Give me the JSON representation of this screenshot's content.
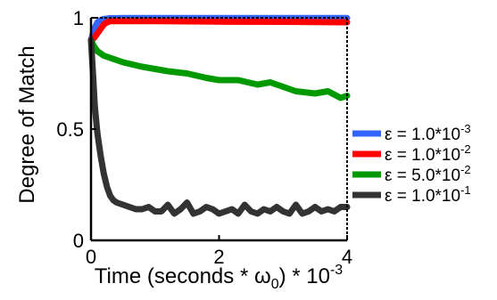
{
  "chart_data": {
    "type": "line",
    "title": "",
    "xlabel": {
      "main": "Time (seconds * ω",
      "sub": "0",
      "after": ") * 10",
      "sup": "-3"
    },
    "ylabel": "Degree of Match",
    "xlim": [
      0,
      4
    ],
    "ylim": [
      0,
      1
    ],
    "x_ticks": [
      0,
      2,
      4
    ],
    "x_tick_labels": [
      "0",
      "2",
      "4"
    ],
    "y_ticks": [
      0,
      0.5,
      1
    ],
    "y_tick_labels": [
      "0",
      "0.5",
      "1"
    ],
    "grid": false,
    "legend_position": "right",
    "series": [
      {
        "name": {
          "main": "ε = 1.0*10",
          "sup": "-3"
        },
        "color": "#3366ff",
        "x": [
          0,
          0.05,
          0.1,
          0.15,
          0.2,
          0.3,
          0.5,
          1,
          2,
          3,
          4
        ],
        "y": [
          0.9,
          0.95,
          0.98,
          0.99,
          0.995,
          0.998,
          0.999,
          0.999,
          0.999,
          0.999,
          0.999
        ]
      },
      {
        "name": {
          "main": "ε = 1.0*10",
          "sup": "-2"
        },
        "color": "#ff0000",
        "x": [
          0,
          0.05,
          0.1,
          0.15,
          0.2,
          0.25,
          0.3,
          0.5,
          1,
          2,
          3,
          4
        ],
        "y": [
          0.9,
          0.91,
          0.93,
          0.95,
          0.97,
          0.98,
          0.985,
          0.985,
          0.985,
          0.983,
          0.982,
          0.98
        ]
      },
      {
        "name": {
          "main": "ε = 5.0*10",
          "sup": "-2"
        },
        "color": "#009900",
        "x": [
          0,
          0.05,
          0.1,
          0.2,
          0.3,
          0.5,
          0.8,
          1,
          1.2,
          1.5,
          1.8,
          2,
          2.3,
          2.6,
          2.8,
          3,
          3.2,
          3.5,
          3.7,
          3.9,
          4
        ],
        "y": [
          0.9,
          0.87,
          0.85,
          0.83,
          0.82,
          0.8,
          0.78,
          0.77,
          0.76,
          0.75,
          0.73,
          0.72,
          0.72,
          0.7,
          0.71,
          0.69,
          0.67,
          0.66,
          0.67,
          0.64,
          0.65
        ]
      },
      {
        "name": {
          "main": "ε = 1.0*10",
          "sup": "-1"
        },
        "color": "#333333",
        "x": [
          0,
          0.03,
          0.06,
          0.1,
          0.15,
          0.2,
          0.25,
          0.3,
          0.35,
          0.4,
          0.5,
          0.6,
          0.7,
          0.8,
          0.9,
          1.0,
          1.1,
          1.2,
          1.3,
          1.4,
          1.5,
          1.6,
          1.7,
          1.8,
          1.9,
          2.0,
          2.1,
          2.2,
          2.3,
          2.4,
          2.5,
          2.6,
          2.7,
          2.8,
          2.9,
          3.0,
          3.1,
          3.2,
          3.3,
          3.4,
          3.5,
          3.6,
          3.7,
          3.8,
          3.9,
          4.0
        ],
        "y": [
          0.9,
          0.75,
          0.6,
          0.48,
          0.38,
          0.3,
          0.24,
          0.2,
          0.18,
          0.17,
          0.16,
          0.15,
          0.14,
          0.14,
          0.15,
          0.13,
          0.13,
          0.16,
          0.12,
          0.14,
          0.17,
          0.12,
          0.13,
          0.15,
          0.14,
          0.12,
          0.13,
          0.14,
          0.12,
          0.16,
          0.13,
          0.12,
          0.14,
          0.13,
          0.15,
          0.13,
          0.12,
          0.16,
          0.12,
          0.13,
          0.15,
          0.13,
          0.14,
          0.13,
          0.15,
          0.15
        ]
      }
    ]
  }
}
